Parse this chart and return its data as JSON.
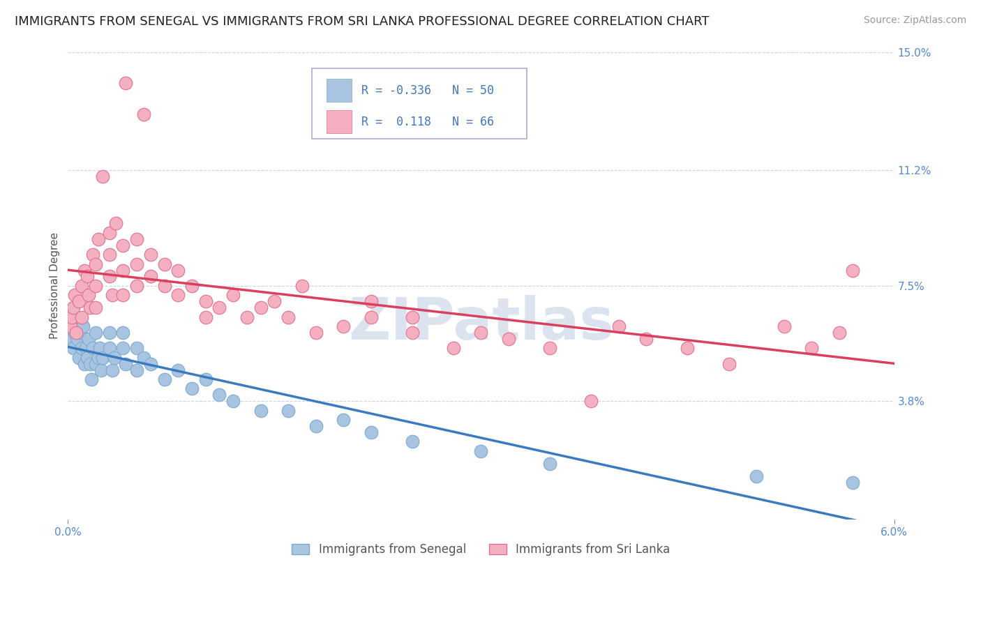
{
  "title": "IMMIGRANTS FROM SENEGAL VS IMMIGRANTS FROM SRI LANKA PROFESSIONAL DEGREE CORRELATION CHART",
  "source": "Source: ZipAtlas.com",
  "ylabel": "Professional Degree",
  "xlim": [
    0.0,
    0.06
  ],
  "ylim": [
    0.0,
    0.15
  ],
  "xtick_labels": [
    "0.0%",
    "6.0%"
  ],
  "xtick_positions": [
    0.0,
    0.06
  ],
  "ytick_labels": [
    "3.8%",
    "7.5%",
    "11.2%",
    "15.0%"
  ],
  "ytick_positions": [
    0.038,
    0.075,
    0.112,
    0.15
  ],
  "series": [
    {
      "name": "Immigrants from Senegal",
      "color": "#a8c4e0",
      "edge_color": "#7aaad0",
      "R": -0.336,
      "N": 50,
      "line_color": "#3a7abf",
      "x": [
        0.0002,
        0.0003,
        0.0004,
        0.0005,
        0.0006,
        0.0007,
        0.0008,
        0.0009,
        0.001,
        0.0011,
        0.0012,
        0.0013,
        0.0014,
        0.0015,
        0.0016,
        0.0017,
        0.0018,
        0.002,
        0.002,
        0.0022,
        0.0023,
        0.0024,
        0.0025,
        0.003,
        0.003,
        0.0032,
        0.0034,
        0.004,
        0.004,
        0.0042,
        0.005,
        0.005,
        0.0055,
        0.006,
        0.007,
        0.008,
        0.009,
        0.01,
        0.011,
        0.012,
        0.014,
        0.016,
        0.018,
        0.02,
        0.022,
        0.025,
        0.03,
        0.035,
        0.05,
        0.057
      ],
      "y": [
        0.058,
        0.062,
        0.055,
        0.06,
        0.065,
        0.058,
        0.052,
        0.06,
        0.055,
        0.062,
        0.05,
        0.055,
        0.052,
        0.058,
        0.05,
        0.045,
        0.055,
        0.05,
        0.06,
        0.052,
        0.055,
        0.048,
        0.052,
        0.06,
        0.055,
        0.048,
        0.052,
        0.06,
        0.055,
        0.05,
        0.055,
        0.048,
        0.052,
        0.05,
        0.045,
        0.048,
        0.042,
        0.045,
        0.04,
        0.038,
        0.035,
        0.035,
        0.03,
        0.032,
        0.028,
        0.025,
        0.022,
        0.018,
        0.014,
        0.012
      ]
    },
    {
      "name": "Immigrants from Sri Lanka",
      "color": "#f4b0c0",
      "edge_color": "#e07090",
      "R": 0.118,
      "N": 66,
      "line_color": "#d94060",
      "x": [
        0.0002,
        0.0003,
        0.0004,
        0.0005,
        0.0006,
        0.0008,
        0.001,
        0.001,
        0.0012,
        0.0014,
        0.0015,
        0.0016,
        0.0018,
        0.002,
        0.002,
        0.002,
        0.0022,
        0.0025,
        0.003,
        0.003,
        0.003,
        0.0032,
        0.0035,
        0.004,
        0.004,
        0.004,
        0.0042,
        0.005,
        0.005,
        0.005,
        0.0055,
        0.006,
        0.006,
        0.007,
        0.007,
        0.008,
        0.008,
        0.009,
        0.01,
        0.01,
        0.011,
        0.012,
        0.013,
        0.014,
        0.015,
        0.016,
        0.017,
        0.018,
        0.02,
        0.022,
        0.022,
        0.025,
        0.025,
        0.028,
        0.03,
        0.032,
        0.035,
        0.038,
        0.04,
        0.042,
        0.045,
        0.048,
        0.052,
        0.054,
        0.056,
        0.057
      ],
      "y": [
        0.062,
        0.065,
        0.068,
        0.072,
        0.06,
        0.07,
        0.065,
        0.075,
        0.08,
        0.078,
        0.072,
        0.068,
        0.085,
        0.082,
        0.075,
        0.068,
        0.09,
        0.11,
        0.092,
        0.085,
        0.078,
        0.072,
        0.095,
        0.088,
        0.08,
        0.072,
        0.14,
        0.09,
        0.082,
        0.075,
        0.13,
        0.085,
        0.078,
        0.082,
        0.075,
        0.08,
        0.072,
        0.075,
        0.07,
        0.065,
        0.068,
        0.072,
        0.065,
        0.068,
        0.07,
        0.065,
        0.075,
        0.06,
        0.062,
        0.065,
        0.07,
        0.06,
        0.065,
        0.055,
        0.06,
        0.058,
        0.055,
        0.038,
        0.062,
        0.058,
        0.055,
        0.05,
        0.062,
        0.055,
        0.06,
        0.08
      ]
    }
  ],
  "watermark": "ZIPatlas",
  "watermark_color": "#ccd8e8",
  "background_color": "#ffffff",
  "grid_color": "#c8d4e0",
  "title_fontsize": 13,
  "label_fontsize": 11,
  "tick_fontsize": 11,
  "legend_fontsize": 12,
  "source_fontsize": 10
}
